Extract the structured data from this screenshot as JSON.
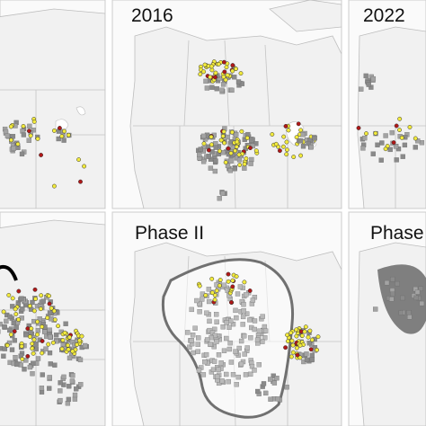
{
  "panels": [
    {
      "label": "2016"
    },
    {
      "label": "2022"
    },
    {
      "label": "Phase II"
    },
    {
      "label": "Phase"
    }
  ]
}
